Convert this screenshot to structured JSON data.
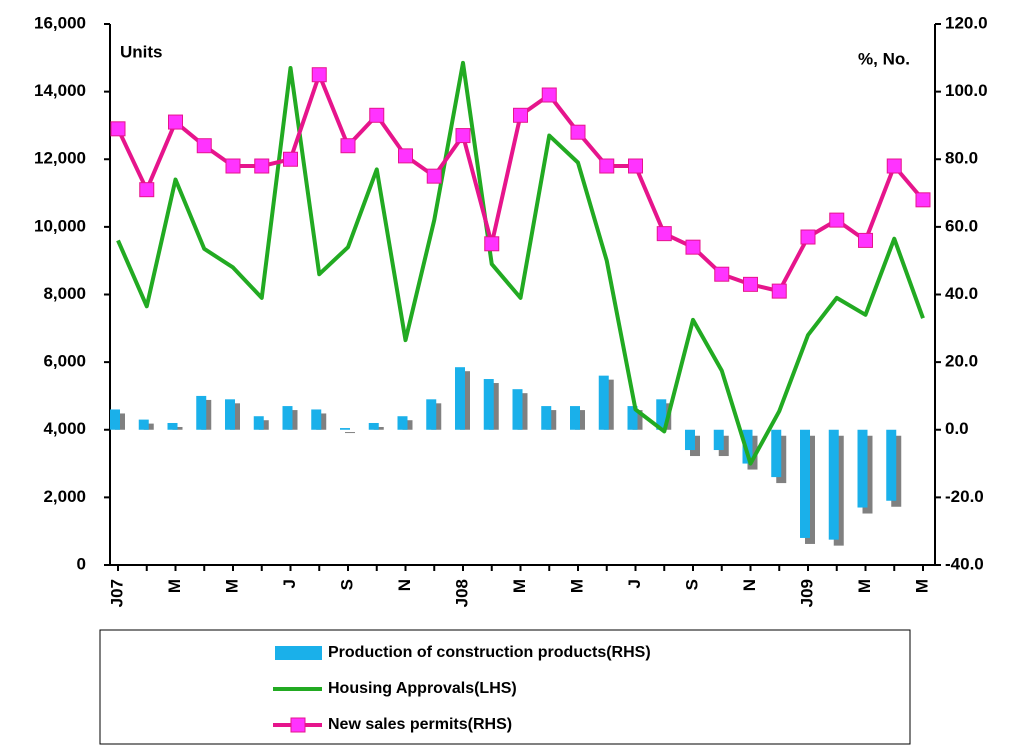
{
  "chart_data": {
    "type": "combo",
    "ylabel": "Units",
    "y2label": "%, No.",
    "categories": [
      "J07",
      null,
      "M",
      null,
      "M",
      null,
      "J",
      null,
      "S",
      null,
      "N",
      null,
      "J08",
      null,
      "M",
      null,
      "M",
      null,
      "J",
      null,
      "S",
      null,
      "N",
      null,
      "J09",
      null,
      "M",
      null,
      "M"
    ],
    "ylim": [
      0,
      16000
    ],
    "yticks": [
      {
        "value": 0,
        "label": "0"
      },
      {
        "value": 2000,
        "label": "2,000"
      },
      {
        "value": 4000,
        "label": "4,000"
      },
      {
        "value": 6000,
        "label": "6,000"
      },
      {
        "value": 8000,
        "label": "8,000"
      },
      {
        "value": 10000,
        "label": "10,000"
      },
      {
        "value": 12000,
        "label": "12,000"
      },
      {
        "value": 14000,
        "label": "14,000"
      },
      {
        "value": 16000,
        "label": "16,000"
      }
    ],
    "y2lim": [
      -40,
      120
    ],
    "y2ticks": [
      {
        "value": -40,
        "label": "-40.0"
      },
      {
        "value": -20,
        "label": "-20.0"
      },
      {
        "value": 0,
        "label": "0.0"
      },
      {
        "value": 20,
        "label": "20.0"
      },
      {
        "value": 40,
        "label": "40.0"
      },
      {
        "value": 60,
        "label": "60.0"
      },
      {
        "value": 80,
        "label": "80.0"
      },
      {
        "value": 100,
        "label": "100.0"
      },
      {
        "value": 120,
        "label": "120.0"
      }
    ],
    "series": [
      {
        "name": "Production of construction products(RHS)",
        "type": "bar",
        "axis": "y2",
        "color": "#1ab0ea",
        "values": [
          6,
          3,
          2,
          10,
          9,
          4,
          7,
          6,
          0.5,
          2,
          4,
          9,
          18.5,
          15,
          12,
          7,
          7,
          16,
          7,
          9,
          -6,
          -6,
          -10,
          -14,
          -32,
          -32.5,
          -23,
          -21,
          null
        ]
      },
      {
        "name": "Housing Approvals(LHS)",
        "type": "line",
        "color": "#22aa22",
        "values": [
          9600,
          7650,
          11400,
          9350,
          8800,
          7900,
          14700,
          8600,
          9400,
          11700,
          6650,
          10200,
          14850,
          8900,
          7900,
          12700,
          11900,
          9000,
          4600,
          3950,
          7250,
          5750,
          3000,
          4550,
          6800,
          7900,
          7400,
          9650,
          7300
        ]
      },
      {
        "name": "New sales permits(RHS)",
        "type": "line",
        "axis": "y2",
        "color": "#e6158c",
        "marker": "square",
        "marker_color": "#ff33ff",
        "values": [
          89,
          71,
          91,
          84,
          78,
          78,
          80,
          105,
          84,
          93,
          81,
          75,
          87,
          55,
          93,
          99,
          88,
          78,
          78,
          58,
          54,
          46,
          43,
          41,
          57,
          62,
          56,
          78,
          68
        ]
      }
    ]
  }
}
